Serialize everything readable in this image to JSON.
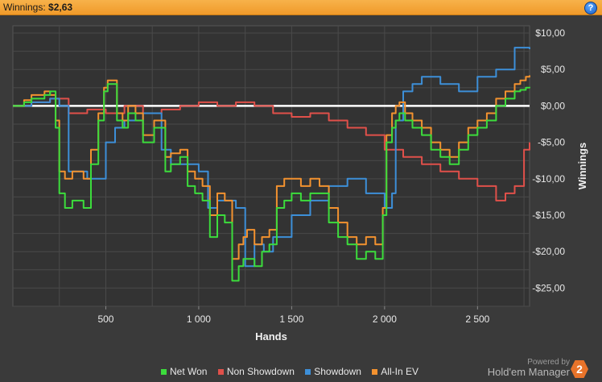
{
  "header": {
    "label": "Winnings:",
    "value": "$2,63",
    "help_icon": "question-circle-icon"
  },
  "branding": {
    "powered_by": "Powered by",
    "product": "Hold'em Manager",
    "logo_text": "2"
  },
  "chart_data": {
    "type": "line",
    "xlabel": "Hands",
    "ylabel": "Winnings",
    "xlim": [
      0,
      2780
    ],
    "ylim": [
      -27.5,
      11
    ],
    "x_ticks": [
      500,
      1000,
      1500,
      2000,
      2500
    ],
    "x_tick_labels": [
      "500",
      "1 000",
      "1 500",
      "2 000",
      "2 500"
    ],
    "y_ticks": [
      10,
      5,
      0,
      -5,
      -10,
      -15,
      -20,
      -25
    ],
    "y_tick_labels": [
      "$10,00",
      "$5,00",
      "$0,00",
      "-$5,00",
      "-$10,00",
      "-$15,00",
      "-$20,00",
      "-$25,00"
    ],
    "grid": true,
    "legend_position": "bottom",
    "series": [
      {
        "name": "Net Won",
        "color": "#3cdc3c",
        "x": [
          0,
          60,
          100,
          170,
          200,
          230,
          250,
          280,
          320,
          380,
          420,
          460,
          490,
          510,
          560,
          590,
          620,
          660,
          700,
          760,
          820,
          850,
          900,
          940,
          980,
          1020,
          1060,
          1100,
          1140,
          1180,
          1215,
          1240,
          1260,
          1300,
          1340,
          1380,
          1420,
          1460,
          1500,
          1550,
          1600,
          1650,
          1700,
          1750,
          1800,
          1850,
          1900,
          1950,
          1990,
          2010,
          2040,
          2060,
          2080,
          2110,
          2150,
          2200,
          2250,
          2300,
          2350,
          2400,
          2450,
          2500,
          2550,
          2600,
          2650,
          2700,
          2730,
          2760,
          2780
        ],
        "y": [
          0,
          0.5,
          1,
          1.5,
          2,
          -3,
          -12,
          -14,
          -13,
          -14,
          -8,
          -2,
          2,
          3,
          -2,
          -3,
          -1,
          -2,
          -5,
          -3,
          -9,
          -8,
          -7,
          -11,
          -12,
          -13,
          -18,
          -15,
          -16,
          -24,
          -22,
          -21,
          -21,
          -22,
          -20,
          -19,
          -14,
          -13,
          -12,
          -13,
          -12,
          -12,
          -16,
          -18,
          -19,
          -21,
          -20,
          -21,
          -15,
          -5,
          -3,
          -2,
          -1,
          -2,
          -3,
          -4,
          -6,
          -7,
          -8,
          -6,
          -4,
          -3,
          -2,
          0,
          1,
          2,
          2.2,
          2.5,
          2.63
        ]
      },
      {
        "name": "Non Showdown",
        "color": "#e0504a",
        "x": [
          0,
          100,
          200,
          300,
          400,
          500,
          600,
          700,
          800,
          900,
          1000,
          1100,
          1200,
          1300,
          1400,
          1500,
          1600,
          1700,
          1800,
          1900,
          2000,
          2100,
          2200,
          2300,
          2400,
          2500,
          2600,
          2650,
          2700,
          2750,
          2780
        ],
        "y": [
          0,
          0.5,
          1,
          -1,
          -0.5,
          -1,
          0,
          -1,
          -0.5,
          0,
          0.5,
          0,
          0.5,
          0,
          -1,
          -1.5,
          -1,
          -2,
          -3,
          -4,
          -6,
          -7,
          -8,
          -9,
          -10,
          -11,
          -13,
          -12,
          -11,
          -6,
          -5
        ]
      },
      {
        "name": "Showdown",
        "color": "#3d8fd8",
        "x": [
          0,
          100,
          200,
          250,
          300,
          400,
          500,
          550,
          600,
          700,
          800,
          850,
          900,
          1000,
          1050,
          1100,
          1200,
          1250,
          1300,
          1350,
          1400,
          1500,
          1600,
          1700,
          1800,
          1900,
          2000,
          2040,
          2060,
          2100,
          2150,
          2200,
          2300,
          2400,
          2500,
          2600,
          2700,
          2780
        ],
        "y": [
          0,
          0.5,
          1,
          0,
          -9,
          -10,
          -5,
          -3,
          -2,
          -1,
          -6,
          -8,
          -8,
          -9,
          -14,
          -13,
          -14,
          -22,
          -19,
          -20,
          -18,
          -15,
          -13,
          -11,
          -10,
          -12,
          -14,
          -12,
          -2,
          2,
          3,
          4,
          3,
          2,
          4,
          5,
          8,
          7.8
        ]
      },
      {
        "name": "All-In EV",
        "color": "#f3922f",
        "x": [
          0,
          60,
          100,
          170,
          200,
          230,
          250,
          280,
          320,
          380,
          420,
          460,
          490,
          510,
          560,
          590,
          620,
          660,
          700,
          760,
          820,
          850,
          900,
          940,
          980,
          1020,
          1060,
          1100,
          1140,
          1180,
          1215,
          1240,
          1260,
          1300,
          1340,
          1380,
          1420,
          1460,
          1500,
          1550,
          1600,
          1650,
          1700,
          1750,
          1800,
          1850,
          1900,
          1950,
          1990,
          2010,
          2040,
          2060,
          2080,
          2110,
          2150,
          2200,
          2250,
          2300,
          2350,
          2400,
          2450,
          2500,
          2550,
          2600,
          2650,
          2700,
          2730,
          2760,
          2780
        ],
        "y": [
          0,
          0.8,
          1.5,
          2,
          1.5,
          -2,
          -9,
          -10,
          -9,
          -10,
          -6,
          -1,
          2.5,
          3.5,
          -1,
          -2,
          0,
          -1,
          -4,
          -2,
          -7,
          -6.5,
          -6,
          -9,
          -10,
          -11,
          -15,
          -12,
          -13,
          -21,
          -19,
          -18,
          -17,
          -19,
          -18,
          -17,
          -11,
          -10,
          -10,
          -11,
          -10,
          -11,
          -14,
          -16,
          -18,
          -19,
          -18,
          -19,
          -14,
          -4,
          -1,
          0,
          0.5,
          -1,
          -2,
          -3,
          -5,
          -6,
          -7,
          -5,
          -3,
          -2,
          -1,
          1,
          2,
          3,
          3.5,
          4,
          4.2
        ]
      }
    ]
  }
}
